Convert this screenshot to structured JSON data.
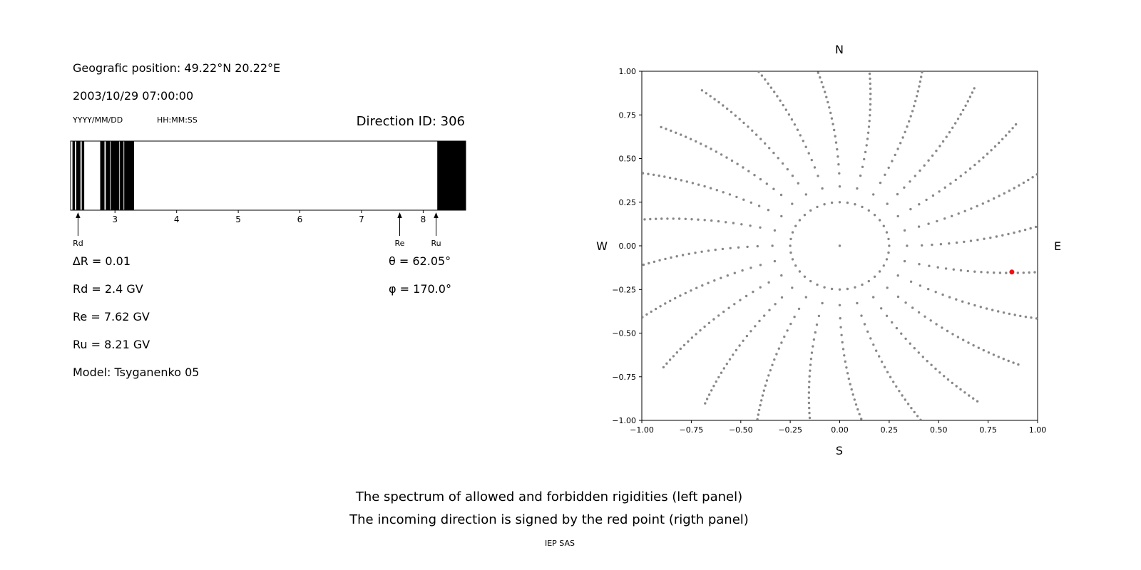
{
  "left_panel": {
    "position": "Geografic position: 49.22°N 20.22°E",
    "datetime": "2003/10/29 07:00:00",
    "date_format": "YYYY/MM/DD",
    "time_format": "HH:MM:SS",
    "direction_id": "Direction ID: 306",
    "params": {
      "delta_r": "∆R = 0.01",
      "rd": "Rd = 2.4 GV",
      "re": "Re = 7.62 GV",
      "ru": "Ru = 8.21 GV",
      "model": "Model: Tsyganenko 05",
      "theta": "θ = 62.05°",
      "phi": "φ = 170.0°"
    }
  },
  "right_panel": {
    "compass": {
      "n": "N",
      "s": "S",
      "w": "W",
      "e": "E"
    }
  },
  "caption": {
    "line1": "The spectrum of allowed and forbidden rigidities (left panel)",
    "line2": "The incoming direction is signed by the red point (rigth panel)",
    "credit": "IEP SAS"
  },
  "chart_data": [
    {
      "type": "bar",
      "title": "Spectrum of allowed and forbidden rigidities",
      "x_range": [
        2.28,
        8.69
      ],
      "x_ticks": [
        3,
        4,
        5,
        6,
        7,
        8
      ],
      "allowed_color": "#ffffff",
      "forbidden_color": "#000000",
      "forbidden_intervals": [
        [
          2.31,
          2.35
        ],
        [
          2.37,
          2.44
        ],
        [
          2.46,
          2.5
        ],
        [
          2.76,
          2.83
        ],
        [
          2.85,
          2.92
        ],
        [
          2.93,
          3.07
        ],
        [
          3.08,
          3.14
        ],
        [
          3.15,
          3.31
        ],
        [
          8.23,
          8.69
        ]
      ],
      "markers": [
        {
          "label": "Rd",
          "value": 2.4
        },
        {
          "label": "Re",
          "value": 7.62
        },
        {
          "label": "Ru",
          "value": 8.21
        }
      ]
    },
    {
      "type": "scatter",
      "title": "Asymptotic directions map",
      "xlim": [
        -1,
        1
      ],
      "ylim": [
        -1,
        1
      ],
      "x_tick_values": [
        -1,
        -0.75,
        -0.5,
        -0.25,
        0,
        0.25,
        0.5,
        0.75,
        1
      ],
      "x_tick_labels": [
        "−1.00",
        "−0.75",
        "−0.50",
        "−0.25",
        "0.00",
        "0.25",
        "0.50",
        "0.75",
        "1.00"
      ],
      "y_tick_values": [
        -1,
        -0.75,
        -0.5,
        -0.25,
        0,
        0.25,
        0.5,
        0.75,
        1
      ],
      "y_tick_labels": [
        "−1.00",
        "−0.75",
        "−0.50",
        "−0.25",
        "0.00",
        "0.25",
        "0.50",
        "0.75",
        "1.00"
      ],
      "dot_color": "#888888",
      "dot_pattern": {
        "center_dot": true,
        "ring": {
          "radius": 0.25,
          "dots": 40
        },
        "spokes": {
          "count": 24,
          "start_angle_deg": 0,
          "r_start": 0.34,
          "r_end": 1.13,
          "dots_per_spoke": 24,
          "density_power": 0.75,
          "curve_deg": 8
        }
      },
      "red_point": {
        "x": 0.87,
        "y": -0.15,
        "color": "#ee1111",
        "label": "incoming direction"
      }
    }
  ]
}
